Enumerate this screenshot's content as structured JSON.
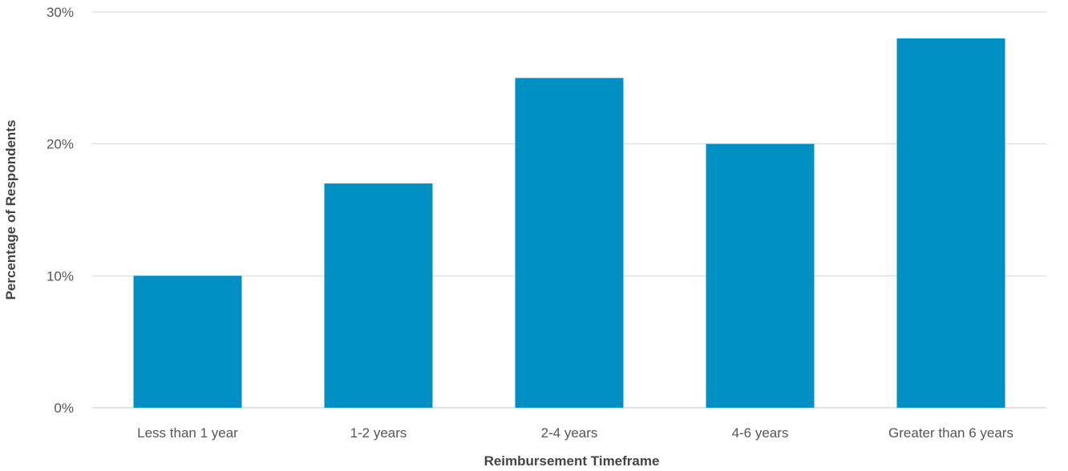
{
  "chart_data": {
    "type": "bar",
    "title": "",
    "xlabel": "Reimbursement Timeframe",
    "ylabel": "Percentage of Respondents",
    "categories": [
      "Less than 1 year",
      "1-2 years",
      "2-4 years",
      "4-6 years",
      "Greater than 6 years"
    ],
    "values": [
      10,
      17,
      25,
      20,
      28
    ],
    "ylim": [
      0,
      30
    ],
    "yticks": [
      0,
      10,
      20,
      30
    ],
    "ytick_labels": [
      "0%",
      "10%",
      "20%",
      "30%"
    ],
    "grid": true,
    "legend": "none",
    "bar_color": "#0090c4"
  }
}
